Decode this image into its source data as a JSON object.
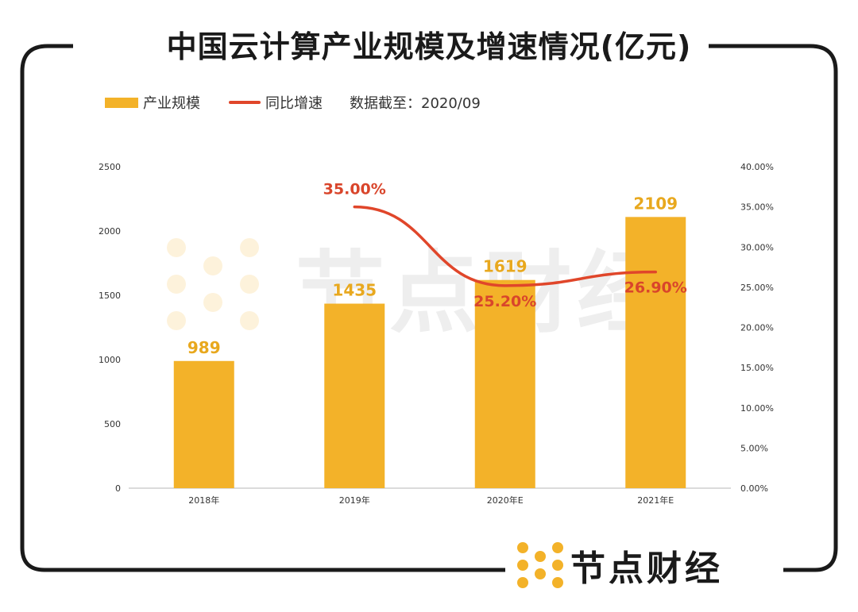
{
  "title": "中国云计算产业规模及增速情况(亿元)",
  "legend": {
    "bar_label": "产业规模",
    "line_label": "同比增速",
    "note": "数据截至：2020/09"
  },
  "watermark": "节点财经",
  "brand": {
    "name": "节点财经"
  },
  "colors": {
    "bar": "#F3B229",
    "line": "#E0462A",
    "bar_label": "#E8A81E",
    "line_label": "#D9452B",
    "frame": "#1a1a1a"
  },
  "chart_data": {
    "type": "bar",
    "categories": [
      "2018年",
      "2019年",
      "2020年E",
      "2021年E"
    ],
    "series": [
      {
        "name": "产业规模",
        "type": "bar",
        "axis": "left",
        "values": [
          989,
          1435,
          1619,
          2109
        ],
        "labels": [
          "989",
          "1435",
          "1619",
          "2109"
        ]
      },
      {
        "name": "同比增速",
        "type": "line",
        "axis": "right",
        "values": [
          null,
          35.0,
          25.2,
          26.9
        ],
        "labels": [
          "",
          "35.00%",
          "25.20%",
          "26.90%"
        ]
      }
    ],
    "left_axis": {
      "ticks": [
        "0",
        "500",
        "1000",
        "1500",
        "2000",
        "2500"
      ],
      "range": [
        0,
        2500
      ]
    },
    "right_axis": {
      "ticks": [
        "0.00%",
        "5.00%",
        "10.00%",
        "15.00%",
        "20.00%",
        "25.00%",
        "30.00%",
        "35.00%",
        "40.00%"
      ],
      "range": [
        0,
        40
      ]
    },
    "grid": false,
    "legend_position": "top-left"
  }
}
